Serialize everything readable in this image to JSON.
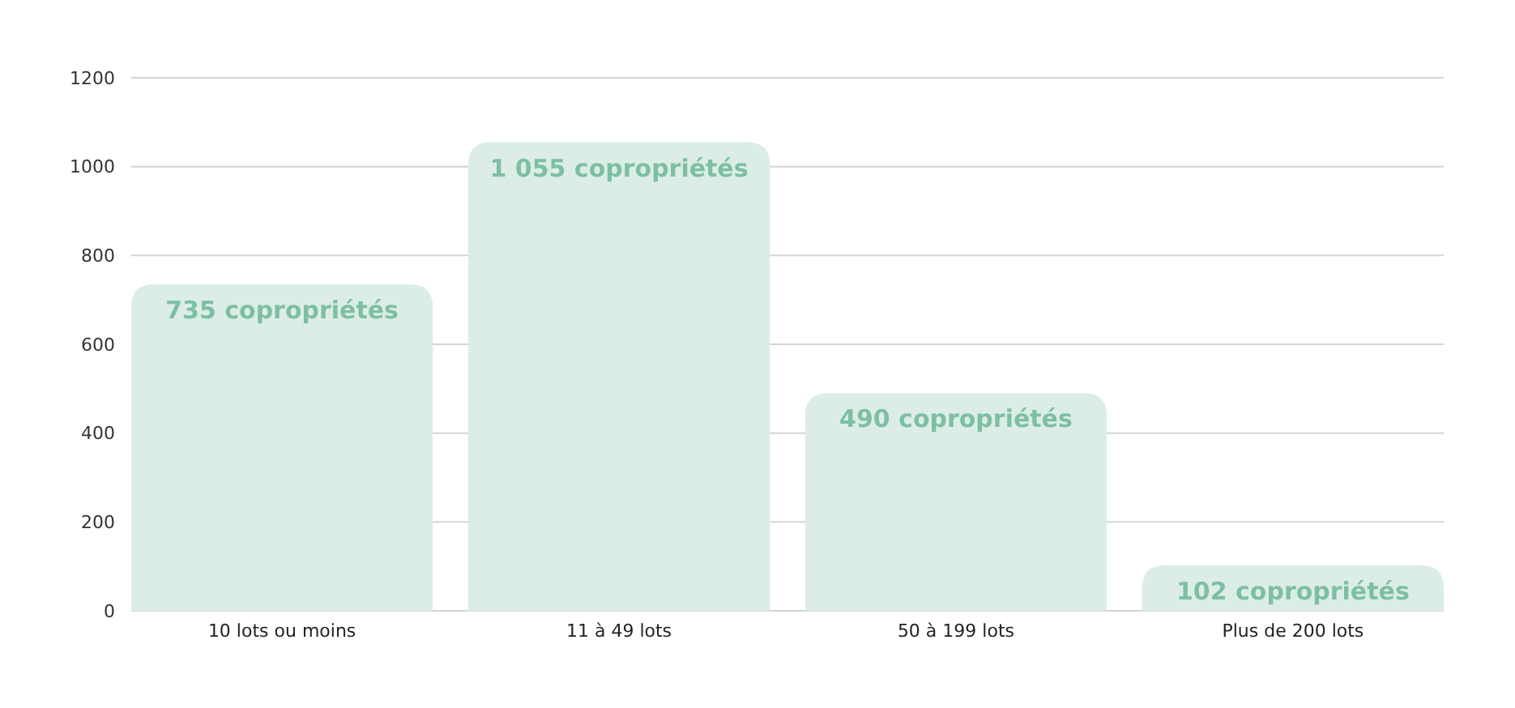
{
  "chart_data": {
    "type": "bar",
    "categories": [
      "10 lots ou moins",
      "11 à 49 lots",
      "50 à 199 lots",
      "Plus de 200 lots"
    ],
    "values": [
      735,
      1055,
      490,
      102
    ],
    "value_labels": [
      "735 copropriétés",
      "1 055 copropriétés",
      "490 copropriétés",
      "102 copropriétés"
    ],
    "color": "#dbede6",
    "ylim": [
      0,
      1200
    ],
    "yticks": [
      0,
      200,
      400,
      600,
      800,
      1000,
      1200
    ],
    "grid": "y"
  }
}
